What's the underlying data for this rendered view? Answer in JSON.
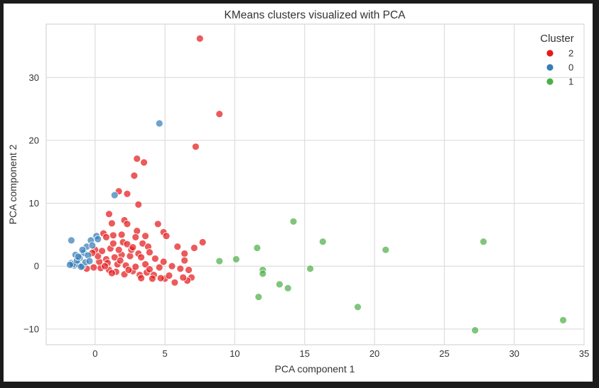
{
  "chart_data": {
    "type": "scatter",
    "title": "KMeans clusters visualized with PCA",
    "xlabel": "PCA component 1",
    "ylabel": "PCA component 2",
    "xlim": [
      -3.5,
      35
    ],
    "ylim": [
      -12.5,
      38.5
    ],
    "xticks": [
      0,
      5,
      10,
      15,
      20,
      25,
      30,
      35
    ],
    "yticks": [
      -10,
      0,
      10,
      20,
      30
    ],
    "grid": true,
    "legend": {
      "title": "Cluster",
      "position": "top-right"
    },
    "series": [
      {
        "name": "2",
        "color": "#e41a1c",
        "points": [
          [
            7.5,
            36.2
          ],
          [
            8.9,
            24.2
          ],
          [
            7.2,
            19.0
          ],
          [
            3.0,
            17.1
          ],
          [
            3.5,
            16.5
          ],
          [
            2.8,
            14.4
          ],
          [
            1.7,
            11.9
          ],
          [
            2.3,
            11.5
          ],
          [
            3.1,
            9.8
          ],
          [
            1.0,
            8.3
          ],
          [
            2.1,
            7.3
          ],
          [
            1.2,
            6.8
          ],
          [
            2.3,
            6.7
          ],
          [
            4.5,
            6.7
          ],
          [
            0.6,
            5.2
          ],
          [
            1.3,
            4.9
          ],
          [
            1.9,
            5.0
          ],
          [
            3.0,
            5.6
          ],
          [
            2.9,
            4.6
          ],
          [
            3.6,
            4.8
          ],
          [
            4.9,
            5.4
          ],
          [
            5.1,
            4.8
          ],
          [
            0.8,
            4.6
          ],
          [
            2.0,
            3.8
          ],
          [
            2.3,
            3.5
          ],
          [
            3.4,
            3.6
          ],
          [
            3.8,
            3.1
          ],
          [
            7.7,
            3.8
          ],
          [
            5.9,
            3.1
          ],
          [
            7.1,
            2.9
          ],
          [
            6.4,
            2.0
          ],
          [
            6.4,
            0.9
          ],
          [
            5.5,
            0.0
          ],
          [
            6.1,
            -0.4
          ],
          [
            6.7,
            -0.6
          ],
          [
            6.9,
            -1.8
          ],
          [
            6.6,
            -2.3
          ],
          [
            5.7,
            -2.6
          ],
          [
            6.3,
            -1.8
          ],
          [
            5.0,
            -2.0
          ],
          [
            4.7,
            -1.9
          ],
          [
            4.2,
            -1.4
          ],
          [
            3.7,
            -1.0
          ],
          [
            3.2,
            -1.4
          ],
          [
            2.7,
            -0.8
          ],
          [
            2.1,
            -1.3
          ],
          [
            1.5,
            -0.9
          ],
          [
            1.0,
            -0.6
          ],
          [
            0.4,
            -0.3
          ],
          [
            -0.1,
            -0.2
          ],
          [
            -0.6,
            -0.4
          ],
          [
            0.3,
            0.7
          ],
          [
            0.8,
            1.1
          ],
          [
            1.4,
            1.4
          ],
          [
            1.9,
            1.8
          ],
          [
            2.5,
            1.6
          ],
          [
            3.1,
            2.0
          ],
          [
            3.9,
            2.2
          ],
          [
            4.3,
            1.2
          ],
          [
            4.9,
            0.7
          ],
          [
            4.6,
            -0.2
          ],
          [
            3.6,
            0.3
          ],
          [
            2.9,
            -0.1
          ],
          [
            2.2,
            0.1
          ],
          [
            1.6,
            0.3
          ],
          [
            0.9,
            0.5
          ],
          [
            0.2,
            1.6
          ],
          [
            0.5,
            2.4
          ],
          [
            1.1,
            2.8
          ],
          [
            1.7,
            2.6
          ],
          [
            2.6,
            2.6
          ],
          [
            3.3,
            1.4
          ],
          [
            0.0,
            2.6
          ],
          [
            -0.2,
            2.1
          ],
          [
            1.3,
            3.6
          ],
          [
            2.7,
            3.0
          ],
          [
            3.9,
            -0.5
          ],
          [
            5.3,
            -1.5
          ],
          [
            4.1,
            -2.0
          ],
          [
            3.3,
            -1.9
          ],
          [
            1.2,
            -1.1
          ],
          [
            1.8,
            0.9
          ],
          [
            2.4,
            -0.6
          ],
          [
            0.7,
            0.0
          ]
        ]
      },
      {
        "name": "0",
        "color": "#377eb8",
        "points": [
          [
            4.6,
            22.7
          ],
          [
            1.4,
            11.3
          ],
          [
            -1.7,
            4.1
          ],
          [
            -0.3,
            4.1
          ],
          [
            0.1,
            4.8
          ],
          [
            -0.6,
            3.1
          ],
          [
            -1.4,
            1.8
          ],
          [
            -0.8,
            2.1
          ],
          [
            -1.1,
            1.3
          ],
          [
            -1.7,
            0.5
          ],
          [
            -1.5,
            0.1
          ],
          [
            -1.2,
            0.3
          ],
          [
            -0.9,
            0.0
          ],
          [
            -1.6,
            0.3
          ],
          [
            -0.5,
            1.7
          ],
          [
            -0.2,
            3.3
          ],
          [
            -1.3,
            0.9
          ],
          [
            -0.7,
            0.6
          ],
          [
            -1.0,
            -0.1
          ],
          [
            -1.8,
            0.2
          ],
          [
            -0.4,
            0.8
          ],
          [
            0.2,
            4.3
          ],
          [
            -0.9,
            2.6
          ],
          [
            -1.2,
            1.5
          ]
        ]
      },
      {
        "name": "1",
        "color": "#4daf4a",
        "points": [
          [
            8.9,
            0.8
          ],
          [
            10.1,
            1.1
          ],
          [
            11.6,
            2.9
          ],
          [
            12.0,
            -0.6
          ],
          [
            12.0,
            -1.2
          ],
          [
            11.7,
            -4.9
          ],
          [
            13.2,
            -2.9
          ],
          [
            13.8,
            -3.5
          ],
          [
            14.2,
            7.1
          ],
          [
            15.4,
            -0.4
          ],
          [
            16.3,
            3.9
          ],
          [
            18.8,
            -6.5
          ],
          [
            20.8,
            2.6
          ],
          [
            27.8,
            3.9
          ],
          [
            27.2,
            -10.2
          ],
          [
            33.5,
            -8.6
          ]
        ]
      }
    ]
  }
}
